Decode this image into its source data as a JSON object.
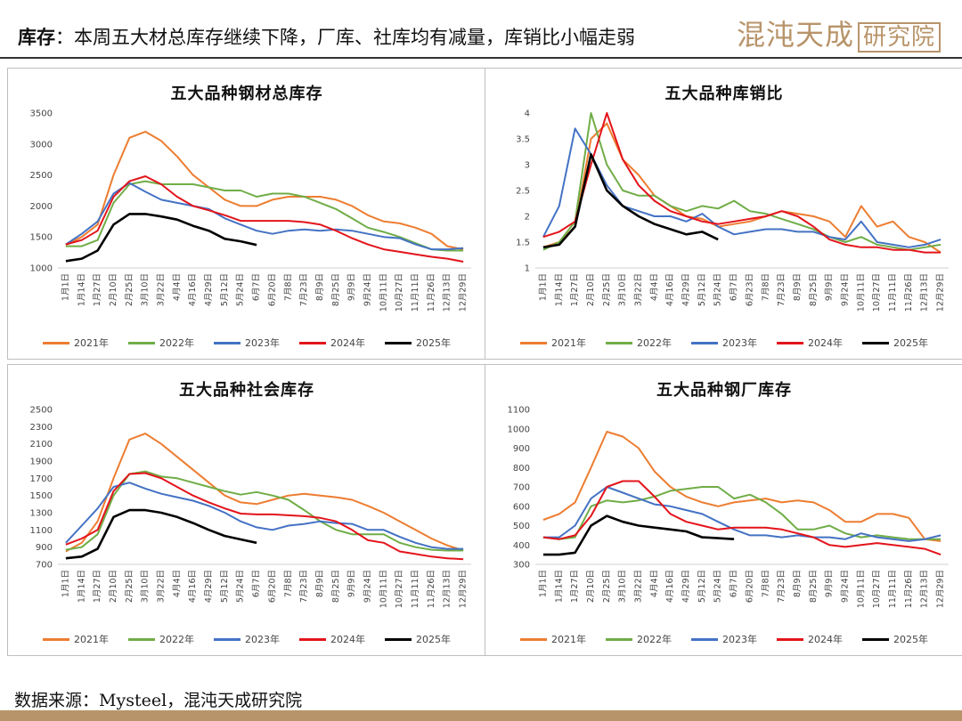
{
  "header": {
    "keyword": "库存",
    "text": "：本周五大材总库存继续下降，厂库、社库均有减量，库销比小幅走弱",
    "logo_text": "混沌天成",
    "logo_box": "研究院"
  },
  "footer": {
    "source": "数据来源：Mysteel，混沌天成研究院"
  },
  "colors": {
    "2021年": "#ED7D31",
    "2022年": "#70AD47",
    "2023年": "#4472C4",
    "2024年": "#E3141B",
    "2025年": "#000000",
    "brand": "#b8946a"
  },
  "chart_data": [
    {
      "type": "line",
      "title": "五大品种钢材总库存",
      "ylim": [
        1000,
        3500
      ],
      "yticks": [
        1000,
        1500,
        2000,
        2500,
        3000,
        3500
      ],
      "categories": [
        "1月1日",
        "1月14日",
        "1月27日",
        "2月10日",
        "2月25日",
        "3月10日",
        "3月22日",
        "4月4日",
        "4月16日",
        "4月29日",
        "5月12日",
        "5月24日",
        "6月7日",
        "6月20日",
        "7月8日",
        "7月23日",
        "8月9日",
        "8月25日",
        "9月9日",
        "9月24日",
        "10月11日",
        "10月27日",
        "11月11日",
        "11月26日",
        "12月13日",
        "12月29日"
      ],
      "series": [
        {
          "name": "2021年",
          "values": [
            1370,
            1500,
            1700,
            2500,
            3100,
            3200,
            3050,
            2800,
            2500,
            2300,
            2100,
            2000,
            2000,
            2100,
            2150,
            2150,
            2150,
            2100,
            2000,
            1850,
            1750,
            1720,
            1650,
            1550,
            1350,
            1300
          ]
        },
        {
          "name": "2022年",
          "values": [
            1350,
            1350,
            1450,
            2050,
            2350,
            2400,
            2350,
            2350,
            2350,
            2300,
            2250,
            2250,
            2150,
            2200,
            2200,
            2150,
            2050,
            1950,
            1800,
            1650,
            1580,
            1500,
            1400,
            1300,
            1280,
            1280
          ]
        },
        {
          "name": "2023年",
          "values": [
            1380,
            1550,
            1750,
            2200,
            2370,
            2230,
            2100,
            2050,
            2000,
            1950,
            1800,
            1700,
            1600,
            1550,
            1600,
            1620,
            1600,
            1620,
            1600,
            1550,
            1500,
            1480,
            1380,
            1300,
            1300,
            1320
          ]
        },
        {
          "name": "2024年",
          "values": [
            1380,
            1450,
            1600,
            2150,
            2400,
            2480,
            2350,
            2150,
            2000,
            1930,
            1850,
            1760,
            1760,
            1760,
            1760,
            1740,
            1700,
            1600,
            1480,
            1380,
            1300,
            1260,
            1220,
            1180,
            1150,
            1100
          ]
        },
        {
          "name": "2025年",
          "values": [
            1110,
            1150,
            1280,
            1700,
            1870,
            1870,
            1830,
            1780,
            1680,
            1600,
            1470,
            1430,
            1370,
            null,
            null,
            null,
            null,
            null,
            null,
            null,
            null,
            null,
            null,
            null,
            null,
            null
          ]
        }
      ]
    },
    {
      "type": "line",
      "title": "五大品种库销比",
      "ylim": [
        1.0,
        4.0
      ],
      "yticks": [
        1.0,
        1.5,
        2.0,
        2.5,
        3.0,
        3.5,
        4.0
      ],
      "categories": [
        "1月1日",
        "1月14日",
        "1月27日",
        "2月10日",
        "2月25日",
        "3月10日",
        "3月22日",
        "4月4日",
        "4月16日",
        "4月29日",
        "5月12日",
        "5月24日",
        "6月7日",
        "6月23日",
        "7月8日",
        "7月23日",
        "8月9日",
        "8月25日",
        "9月9日",
        "9月24日",
        "10月11日",
        "10月27日",
        "11月11日",
        "11月26日",
        "12月13日",
        "12月29日"
      ],
      "series": [
        {
          "name": "2021年",
          "values": [
            1.4,
            1.5,
            1.8,
            3.5,
            3.8,
            3.1,
            2.8,
            2.4,
            2.2,
            2.0,
            1.95,
            1.8,
            1.85,
            1.9,
            2.0,
            2.1,
            2.05,
            2.0,
            1.9,
            1.6,
            2.2,
            1.8,
            1.9,
            1.6,
            1.5,
            1.3
          ]
        },
        {
          "name": "2022年",
          "values": [
            1.35,
            1.5,
            1.9,
            4.0,
            3.0,
            2.5,
            2.4,
            2.4,
            2.2,
            2.1,
            2.2,
            2.15,
            2.3,
            2.1,
            2.05,
            1.95,
            1.85,
            1.75,
            1.6,
            1.5,
            1.6,
            1.45,
            1.4,
            1.35,
            1.4,
            1.45
          ]
        },
        {
          "name": "2023年",
          "values": [
            1.6,
            2.2,
            3.7,
            3.2,
            2.6,
            2.2,
            2.1,
            2.0,
            2.0,
            1.9,
            2.05,
            1.8,
            1.65,
            1.7,
            1.75,
            1.75,
            1.7,
            1.7,
            1.6,
            1.55,
            1.9,
            1.5,
            1.45,
            1.4,
            1.45,
            1.55
          ]
        },
        {
          "name": "2024年",
          "values": [
            1.6,
            1.7,
            1.9,
            3.0,
            4.0,
            3.1,
            2.6,
            2.3,
            2.1,
            2.0,
            1.9,
            1.85,
            1.9,
            1.95,
            2.0,
            2.1,
            2.0,
            1.8,
            1.55,
            1.45,
            1.4,
            1.4,
            1.35,
            1.35,
            1.3,
            1.3
          ]
        },
        {
          "name": "2025年",
          "values": [
            1.4,
            1.45,
            1.8,
            3.2,
            2.5,
            2.2,
            2.0,
            1.85,
            1.75,
            1.65,
            1.7,
            1.55,
            null,
            null,
            null,
            null,
            null,
            null,
            null,
            null,
            null,
            null,
            null,
            null,
            null,
            null
          ]
        }
      ]
    },
    {
      "type": "line",
      "title": "五大品种社会库存",
      "ylim": [
        700,
        2500
      ],
      "yticks": [
        700,
        900,
        1100,
        1300,
        1500,
        1700,
        1900,
        2100,
        2300,
        2500
      ],
      "categories": [
        "1月1日",
        "1月14日",
        "1月27日",
        "2月10日",
        "2月25日",
        "3月10日",
        "3月22日",
        "4月4日",
        "4月16日",
        "4月29日",
        "5月12日",
        "5月24日",
        "6月7日",
        "6月20日",
        "7月8日",
        "7月23日",
        "8月9日",
        "8月25日",
        "9月9日",
        "9月24日",
        "10月11日",
        "10月27日",
        "11月11日",
        "11月26日",
        "12月13日",
        "12月29日"
      ],
      "series": [
        {
          "name": "2021年",
          "values": [
            850,
            950,
            1200,
            1700,
            2150,
            2220,
            2100,
            1950,
            1800,
            1650,
            1500,
            1420,
            1400,
            1450,
            1500,
            1520,
            1500,
            1480,
            1450,
            1380,
            1300,
            1200,
            1100,
            1000,
            920,
            860
          ]
        },
        {
          "name": "2022年",
          "values": [
            870,
            900,
            1050,
            1500,
            1750,
            1780,
            1720,
            1700,
            1650,
            1600,
            1550,
            1510,
            1540,
            1500,
            1450,
            1330,
            1200,
            1100,
            1050,
            1050,
            1050,
            950,
            900,
            870,
            860,
            860
          ]
        },
        {
          "name": "2023年",
          "values": [
            950,
            1150,
            1350,
            1600,
            1650,
            1580,
            1520,
            1480,
            1440,
            1380,
            1300,
            1200,
            1130,
            1100,
            1150,
            1170,
            1200,
            1180,
            1170,
            1100,
            1100,
            1020,
            950,
            900,
            880,
            880
          ]
        },
        {
          "name": "2024年",
          "values": [
            930,
            1000,
            1100,
            1550,
            1750,
            1760,
            1700,
            1600,
            1500,
            1420,
            1350,
            1290,
            1280,
            1280,
            1270,
            1260,
            1240,
            1200,
            1100,
            980,
            950,
            850,
            820,
            790,
            770,
            760
          ]
        },
        {
          "name": "2025年",
          "values": [
            770,
            790,
            880,
            1250,
            1330,
            1330,
            1300,
            1250,
            1180,
            1100,
            1030,
            990,
            950,
            null,
            null,
            null,
            null,
            null,
            null,
            null,
            null,
            null,
            null,
            null,
            null,
            null
          ]
        }
      ]
    },
    {
      "type": "line",
      "title": "五大品种钢厂库存",
      "ylim": [
        300,
        1100
      ],
      "yticks": [
        300,
        400,
        500,
        600,
        700,
        800,
        900,
        1000,
        1100
      ],
      "categories": [
        "1月1日",
        "1月14日",
        "1月27日",
        "2月10日",
        "2月25日",
        "3月10日",
        "3月22日",
        "4月4日",
        "4月16日",
        "4月29日",
        "5月12日",
        "5月24日",
        "6月7日",
        "6月20日",
        "7月8日",
        "7月23日",
        "8月9日",
        "8月25日",
        "9月9日",
        "9月24日",
        "10月11日",
        "10月27日",
        "11月11日",
        "11月26日",
        "12月13日",
        "12月29日"
      ],
      "series": [
        {
          "name": "2021年",
          "values": [
            530,
            560,
            620,
            800,
            985,
            960,
            900,
            780,
            700,
            650,
            620,
            600,
            620,
            630,
            640,
            620,
            630,
            620,
            580,
            520,
            520,
            560,
            560,
            540,
            430,
            420
          ]
        },
        {
          "name": "2022年",
          "values": [
            440,
            430,
            440,
            600,
            630,
            620,
            630,
            650,
            680,
            690,
            700,
            700,
            640,
            660,
            620,
            560,
            480,
            480,
            500,
            460,
            440,
            450,
            440,
            430,
            430,
            430
          ]
        },
        {
          "name": "2023年",
          "values": [
            440,
            440,
            500,
            640,
            700,
            670,
            640,
            610,
            600,
            580,
            560,
            520,
            480,
            450,
            450,
            440,
            450,
            440,
            440,
            430,
            460,
            440,
            430,
            420,
            430,
            450
          ]
        },
        {
          "name": "2024年",
          "values": [
            440,
            430,
            450,
            550,
            700,
            730,
            730,
            650,
            560,
            520,
            500,
            480,
            490,
            490,
            490,
            480,
            460,
            440,
            400,
            390,
            400,
            410,
            400,
            390,
            380,
            350
          ]
        },
        {
          "name": "2025年",
          "values": [
            350,
            350,
            360,
            500,
            550,
            520,
            500,
            490,
            480,
            470,
            440,
            435,
            430,
            null,
            null,
            null,
            null,
            null,
            null,
            null,
            null,
            null,
            null,
            null,
            null,
            null
          ]
        }
      ]
    }
  ]
}
